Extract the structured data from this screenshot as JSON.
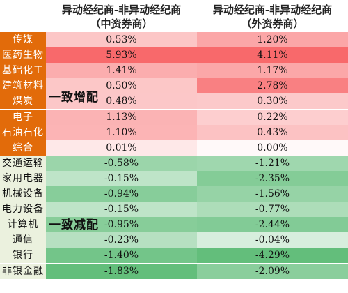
{
  "chart_data": {
    "type": "table",
    "columns": [
      {
        "line1": "异动经纪商-非异动经纪商",
        "line2": "（中资券商）"
      },
      {
        "line1": "异动经纪商-非异动经纪商",
        "line2": "（外资券商）"
      }
    ],
    "groups": [
      {
        "label": "一致增配",
        "start": 0,
        "end": 7
      },
      {
        "label": "一致减配",
        "start": 8,
        "end": 15
      }
    ],
    "rows": [
      {
        "category": "传媒",
        "values": [
          "0.53%",
          "1.20%"
        ],
        "nums": [
          0.53,
          1.2
        ]
      },
      {
        "category": "医药生物",
        "values": [
          "5.93%",
          "4.11%"
        ],
        "nums": [
          5.93,
          4.11
        ]
      },
      {
        "category": "基础化工",
        "values": [
          "1.41%",
          "1.17%"
        ],
        "nums": [
          1.41,
          1.17
        ]
      },
      {
        "category": "建筑材料",
        "values": [
          "0.50%",
          "2.78%"
        ],
        "nums": [
          0.5,
          2.78
        ]
      },
      {
        "category": "煤炭",
        "values": [
          "0.48%",
          "0.30%"
        ],
        "nums": [
          0.48,
          0.3
        ]
      },
      {
        "category": "电子",
        "values": [
          "1.13%",
          "0.22%"
        ],
        "nums": [
          1.13,
          0.22
        ]
      },
      {
        "category": "石油石化",
        "values": [
          "1.10%",
          "0.43%"
        ],
        "nums": [
          1.1,
          0.43
        ]
      },
      {
        "category": "综合",
        "values": [
          "0.01%",
          "0.00%"
        ],
        "nums": [
          0.01,
          0.0
        ]
      },
      {
        "category": "交通运输",
        "values": [
          "-0.58%",
          "-1.21%"
        ],
        "nums": [
          -0.58,
          -1.21
        ]
      },
      {
        "category": "家用电器",
        "values": [
          "-0.15%",
          "-2.35%"
        ],
        "nums": [
          -0.15,
          -2.35
        ]
      },
      {
        "category": "机械设备",
        "values": [
          "-0.94%",
          "-1.56%"
        ],
        "nums": [
          -0.94,
          -1.56
        ]
      },
      {
        "category": "电力设备",
        "values": [
          "-0.15%",
          "-0.77%"
        ],
        "nums": [
          -0.15,
          -0.77
        ]
      },
      {
        "category": "计算机",
        "values": [
          "-0.95%",
          "-2.44%"
        ],
        "nums": [
          -0.95,
          -2.44
        ]
      },
      {
        "category": "通信",
        "values": [
          "-0.23%",
          "-0.04%"
        ],
        "nums": [
          -0.23,
          -0.04
        ]
      },
      {
        "category": "银行",
        "values": [
          "-1.40%",
          "-4.29%"
        ],
        "nums": [
          -1.4,
          -4.29
        ]
      },
      {
        "category": "非银金融",
        "values": [
          "-1.83%",
          "-2.09%"
        ],
        "nums": [
          -1.83,
          -2.09
        ]
      }
    ],
    "colors": {
      "increase_label_bg": "#E26B0A",
      "decrease_label_bg": "#EBF1DE",
      "positive_cell": "#F8696B",
      "negative_cell": "#63BE7B"
    }
  }
}
